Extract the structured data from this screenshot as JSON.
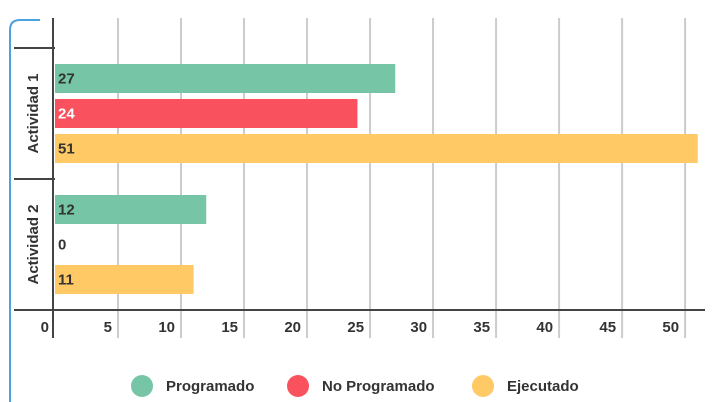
{
  "chart_data": {
    "type": "bar",
    "orientation": "horizontal",
    "categories": [
      "Actividad 1",
      "Actividad 2"
    ],
    "series": [
      {
        "name": "Programado",
        "color": "#76c5a6",
        "values": [
          27,
          12
        ]
      },
      {
        "name": "No Programado",
        "color": "#f9525e",
        "values": [
          24,
          0
        ]
      },
      {
        "name": "Ejecutado",
        "color": "#ffc966",
        "values": [
          51,
          11
        ]
      }
    ],
    "xlim": [
      0,
      51.5
    ],
    "xticks": [
      0,
      5,
      10,
      15,
      20,
      25,
      30,
      35,
      40,
      45,
      50
    ],
    "grid": true,
    "legend": "bottom"
  }
}
